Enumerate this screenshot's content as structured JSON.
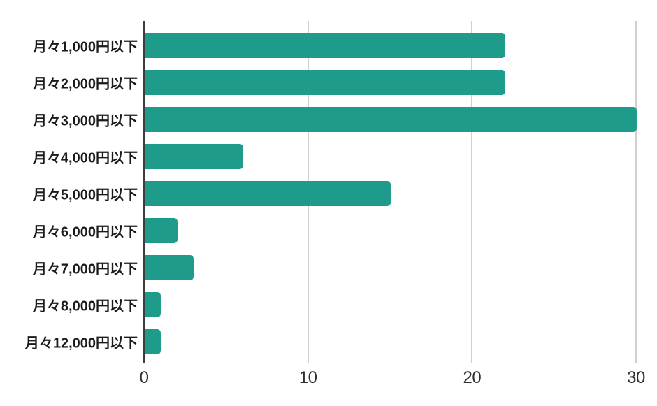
{
  "chart_data": {
    "type": "bar",
    "orientation": "horizontal",
    "title": "",
    "xlabel": "",
    "ylabel": "",
    "categories": [
      "月々1,000円以下",
      "月々2,000円以下",
      "月々3,000円以下",
      "月々4,000円以下",
      "月々5,000円以下",
      "月々6,000円以下",
      "月々7,000円以下",
      "月々8,000円以下",
      "月々12,000円以下"
    ],
    "values": [
      22,
      22,
      30,
      6,
      15,
      2,
      3,
      1,
      1
    ],
    "xlim": [
      0,
      30
    ],
    "x_ticks": [
      0,
      10,
      20,
      30
    ],
    "grid": true,
    "legend": false,
    "colors": {
      "bar": "#1f9b8c",
      "gridline": "#d0d0d0",
      "axis_line": "#3d3d3d",
      "category_label": "#1a1a1a",
      "tick_label": "#2e2e2e",
      "background": "#ffffff"
    }
  }
}
